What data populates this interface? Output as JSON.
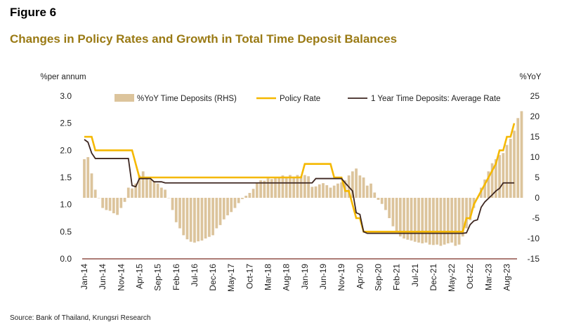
{
  "figure_label": "Figure 6",
  "title": "Changes in Policy Rates and Growth in Total Time Deposit Balances",
  "source": "Source: Bank of Thailand, Krungsri Research",
  "colors": {
    "bars": "#dcc49c",
    "policy": "#f5b800",
    "avg_rate": "#3d2620",
    "title": "#9a7a14",
    "axis": "#7a2e24"
  },
  "chart_data": {
    "type": "bar+line",
    "left_axis": {
      "unit_label": "%per annum",
      "ylim": [
        0.0,
        3.0
      ],
      "ticks": [
        "3.0",
        "2.5",
        "2.0",
        "1.5",
        "1.0",
        "0.5",
        "0.0"
      ]
    },
    "right_axis": {
      "unit_label": "%YoY",
      "ylim": [
        -15,
        25
      ],
      "ticks": [
        "25",
        "20",
        "15",
        "10",
        "5",
        "0",
        "-5",
        "-10",
        "-15"
      ]
    },
    "x_range": [
      "2014-01",
      "2023-10"
    ],
    "x_ticks": [
      "Jan-14",
      "Jun-14",
      "Nov-14",
      "Apr-15",
      "Sep-15",
      "Feb-16",
      "Jul-16",
      "Dec-16",
      "May-17",
      "Oct-17",
      "Mar-18",
      "Aug-18",
      "Jan-19",
      "Jun-19",
      "Nov-19",
      "Apr-20",
      "Sep-20",
      "Feb-21",
      "Jul-21",
      "Dec-21",
      "May-22",
      "Oct-22",
      "Mar-23",
      "Aug-23"
    ],
    "grid": false,
    "legend_position": "top",
    "series": [
      {
        "name": "%YoY Time Deposits (RHS)",
        "kind": "bar",
        "axis": "right",
        "start": "2014-01",
        "values": [
          9.5,
          10,
          6,
          2,
          0,
          -2.5,
          -3,
          -3.2,
          -3.8,
          -4.2,
          -2.5,
          -1,
          2.5,
          2.3,
          3.5,
          5.5,
          6.5,
          5,
          4.5,
          4,
          3.5,
          2.5,
          2,
          0,
          -3,
          -6,
          -7.5,
          -9.2,
          -10.2,
          -10.8,
          -11,
          -10.7,
          -10.5,
          -10,
          -9.6,
          -9.2,
          -7.5,
          -6.7,
          -5.3,
          -4.3,
          -3.5,
          -2.5,
          -1.3,
          -0.3,
          0.5,
          1.2,
          2.2,
          3.7,
          4.3,
          4.2,
          4.8,
          4.6,
          5,
          5.1,
          5.5,
          5.2,
          5.6,
          5.2,
          5.6,
          5.3,
          5.6,
          5.3,
          2.7,
          2.8,
          3.3,
          3.6,
          3.1,
          2.5,
          3,
          3.5,
          3.8,
          4.3,
          5.5,
          6.5,
          7.2,
          5.5,
          5,
          3,
          3.5,
          1.3,
          -0.5,
          -1.5,
          -3,
          -5,
          -7,
          -8.5,
          -9.5,
          -10,
          -10.3,
          -10.5,
          -10.8,
          -11,
          -11.2,
          -11,
          -11.5,
          -11.6,
          -11.5,
          -11.8,
          -11.5,
          -11.2,
          -11,
          -11.8,
          -11.5,
          -9.5,
          -7.5,
          -5.5,
          -2.5,
          0,
          2.5,
          4.5,
          6.5,
          8.5,
          9.5,
          10.5,
          11,
          13,
          14.5,
          16.5,
          19.6,
          21.3
        ]
      },
      {
        "name": "Policy Rate",
        "kind": "line",
        "axis": "left",
        "points": [
          [
            "2014-01",
            2.25
          ],
          [
            "2014-03",
            2.25
          ],
          [
            "2014-04",
            2.0
          ],
          [
            "2015-02",
            2.0
          ],
          [
            "2015-03",
            1.75
          ],
          [
            "2015-04",
            1.5
          ],
          [
            "2018-12",
            1.5
          ],
          [
            "2019-01",
            1.75
          ],
          [
            "2019-08",
            1.75
          ],
          [
            "2019-09",
            1.5
          ],
          [
            "2019-11",
            1.5
          ],
          [
            "2019-12",
            1.25
          ],
          [
            "2020-01",
            1.25
          ],
          [
            "2020-02",
            1.0
          ],
          [
            "2020-03",
            0.75
          ],
          [
            "2020-04",
            0.75
          ],
          [
            "2020-05",
            0.5
          ],
          [
            "2022-08",
            0.5
          ],
          [
            "2022-09",
            0.75
          ],
          [
            "2022-10",
            0.75
          ],
          [
            "2022-11",
            1.0
          ],
          [
            "2023-01",
            1.25
          ],
          [
            "2023-03",
            1.5
          ],
          [
            "2023-05",
            1.75
          ],
          [
            "2023-06",
            2.0
          ],
          [
            "2023-07",
            2.0
          ],
          [
            "2023-08",
            2.25
          ],
          [
            "2023-09",
            2.25
          ],
          [
            "2023-10",
            2.5
          ]
        ]
      },
      {
        "name": "1 Year Time Deposits: Average Rate",
        "kind": "line",
        "axis": "left",
        "points": [
          [
            "2014-01",
            2.2
          ],
          [
            "2014-02",
            2.15
          ],
          [
            "2014-03",
            1.95
          ],
          [
            "2014-04",
            1.85
          ],
          [
            "2015-01",
            1.85
          ],
          [
            "2015-02",
            1.35
          ],
          [
            "2015-03",
            1.33
          ],
          [
            "2015-04",
            1.48
          ],
          [
            "2015-07",
            1.48
          ],
          [
            "2015-08",
            1.42
          ],
          [
            "2015-10",
            1.42
          ],
          [
            "2015-11",
            1.4
          ],
          [
            "2019-03",
            1.4
          ],
          [
            "2019-04",
            1.48
          ],
          [
            "2019-11",
            1.48
          ],
          [
            "2019-12",
            1.4
          ],
          [
            "2020-02",
            1.25
          ],
          [
            "2020-03",
            0.85
          ],
          [
            "2020-04",
            0.82
          ],
          [
            "2020-05",
            0.5
          ],
          [
            "2020-06",
            0.47
          ],
          [
            "2022-08",
            0.47
          ],
          [
            "2022-09",
            0.48
          ],
          [
            "2022-10",
            0.63
          ],
          [
            "2022-11",
            0.7
          ],
          [
            "2022-12",
            0.72
          ],
          [
            "2023-01",
            0.95
          ],
          [
            "2023-02",
            1.05
          ],
          [
            "2023-04",
            1.18
          ],
          [
            "2023-05",
            1.25
          ],
          [
            "2023-06",
            1.3
          ],
          [
            "2023-07",
            1.4
          ],
          [
            "2023-10",
            1.4
          ]
        ]
      }
    ]
  }
}
